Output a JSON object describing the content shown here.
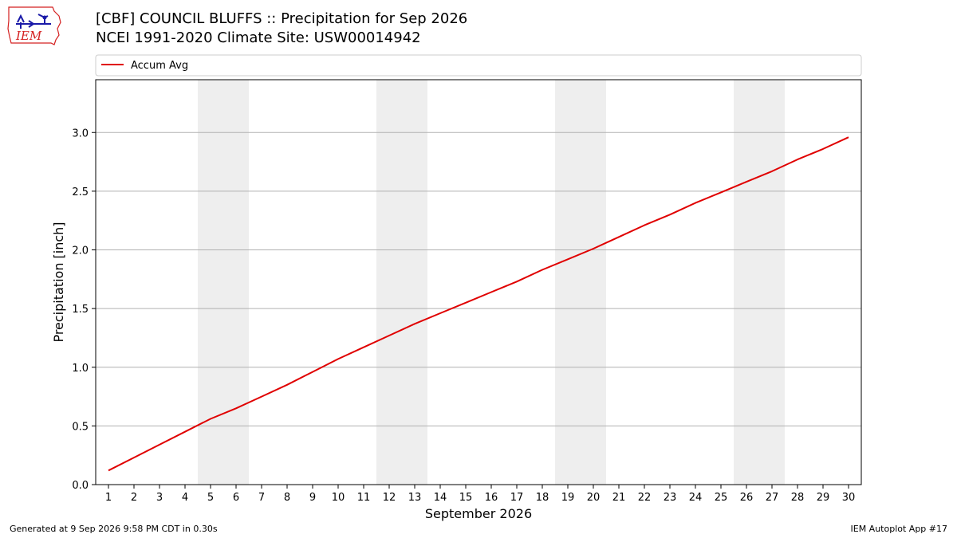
{
  "header": {
    "logo_text": "IEM",
    "title_line1": "[CBF] COUNCIL BLUFFS :: Precipitation for Sep 2026",
    "title_line2": "NCEI 1991-2020 Climate Site: USW00014942"
  },
  "footer": {
    "left": "Generated at 9 Sep 2026 9:58 PM CDT in 0.30s",
    "right": "IEM Autoplot App #17"
  },
  "colors": {
    "series": "#e00000",
    "weekend_band": "#eeeeee",
    "grid": "#b0b0b0",
    "logo_red": "#d42020",
    "logo_blue": "#1a1aa8"
  },
  "chart_data": {
    "type": "line",
    "xlabel": "September 2026",
    "ylabel": "Precipitation [inch]",
    "xlim": [
      0.5,
      30.5
    ],
    "ylim": [
      0.0,
      3.45
    ],
    "x_ticks": [
      1,
      2,
      3,
      4,
      5,
      6,
      7,
      8,
      9,
      10,
      11,
      12,
      13,
      14,
      15,
      16,
      17,
      18,
      19,
      20,
      21,
      22,
      23,
      24,
      25,
      26,
      27,
      28,
      29,
      30
    ],
    "x_tick_labels": [
      "1",
      "2",
      "3",
      "4",
      "5",
      "6",
      "7",
      "8",
      "9",
      "10",
      "11",
      "12",
      "13",
      "14",
      "15",
      "16",
      "17",
      "18",
      "19",
      "20",
      "21",
      "22",
      "23",
      "24",
      "25",
      "26",
      "27",
      "28",
      "29",
      "30"
    ],
    "y_ticks": [
      0.0,
      0.5,
      1.0,
      1.5,
      2.0,
      2.5,
      3.0
    ],
    "y_tick_labels": [
      "0.0",
      "0.5",
      "1.0",
      "1.5",
      "2.0",
      "2.5",
      "3.0"
    ],
    "grid": "horizontal",
    "legend": {
      "placement": "top",
      "entries": [
        "Accum Avg"
      ]
    },
    "shaded_days": [
      [
        5,
        6
      ],
      [
        12,
        13
      ],
      [
        19,
        20
      ],
      [
        26,
        27
      ]
    ],
    "series": [
      {
        "name": "Accum Avg",
        "x": [
          1,
          2,
          3,
          4,
          5,
          6,
          7,
          8,
          9,
          10,
          11,
          12,
          13,
          14,
          15,
          16,
          17,
          18,
          19,
          20,
          21,
          22,
          23,
          24,
          25,
          26,
          27,
          28,
          29,
          30
        ],
        "values": [
          0.12,
          0.23,
          0.34,
          0.45,
          0.56,
          0.65,
          0.75,
          0.85,
          0.96,
          1.07,
          1.17,
          1.27,
          1.37,
          1.46,
          1.55,
          1.64,
          1.73,
          1.83,
          1.92,
          2.01,
          2.11,
          2.21,
          2.3,
          2.4,
          2.49,
          2.58,
          2.67,
          2.77,
          2.86,
          2.96
        ]
      }
    ]
  }
}
